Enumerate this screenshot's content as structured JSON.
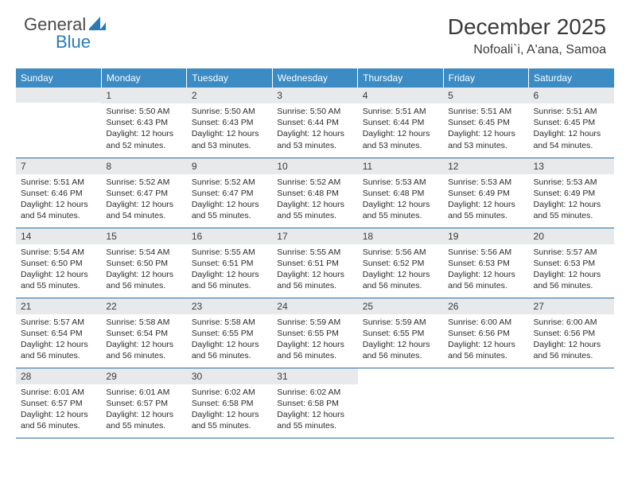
{
  "brand": {
    "part1": "General",
    "part2": "Blue"
  },
  "title": "December 2025",
  "location": "Nofoali`i, A'ana, Samoa",
  "colors": {
    "header_bg": "#3b8bc4",
    "header_text": "#ffffff",
    "daynum_bg": "#e7e9eb",
    "rule": "#2a6fa3",
    "text": "#2b2b2b",
    "brand_gray": "#4a4a4a",
    "brand_blue": "#2a7ab8"
  },
  "weekdays": [
    "Sunday",
    "Monday",
    "Tuesday",
    "Wednesday",
    "Thursday",
    "Friday",
    "Saturday"
  ],
  "weeks": [
    [
      null,
      {
        "n": "1",
        "sr": "5:50 AM",
        "ss": "6:43 PM",
        "dl": "12 hours and 52 minutes."
      },
      {
        "n": "2",
        "sr": "5:50 AM",
        "ss": "6:43 PM",
        "dl": "12 hours and 53 minutes."
      },
      {
        "n": "3",
        "sr": "5:50 AM",
        "ss": "6:44 PM",
        "dl": "12 hours and 53 minutes."
      },
      {
        "n": "4",
        "sr": "5:51 AM",
        "ss": "6:44 PM",
        "dl": "12 hours and 53 minutes."
      },
      {
        "n": "5",
        "sr": "5:51 AM",
        "ss": "6:45 PM",
        "dl": "12 hours and 53 minutes."
      },
      {
        "n": "6",
        "sr": "5:51 AM",
        "ss": "6:45 PM",
        "dl": "12 hours and 54 minutes."
      }
    ],
    [
      {
        "n": "7",
        "sr": "5:51 AM",
        "ss": "6:46 PM",
        "dl": "12 hours and 54 minutes."
      },
      {
        "n": "8",
        "sr": "5:52 AM",
        "ss": "6:47 PM",
        "dl": "12 hours and 54 minutes."
      },
      {
        "n": "9",
        "sr": "5:52 AM",
        "ss": "6:47 PM",
        "dl": "12 hours and 55 minutes."
      },
      {
        "n": "10",
        "sr": "5:52 AM",
        "ss": "6:48 PM",
        "dl": "12 hours and 55 minutes."
      },
      {
        "n": "11",
        "sr": "5:53 AM",
        "ss": "6:48 PM",
        "dl": "12 hours and 55 minutes."
      },
      {
        "n": "12",
        "sr": "5:53 AM",
        "ss": "6:49 PM",
        "dl": "12 hours and 55 minutes."
      },
      {
        "n": "13",
        "sr": "5:53 AM",
        "ss": "6:49 PM",
        "dl": "12 hours and 55 minutes."
      }
    ],
    [
      {
        "n": "14",
        "sr": "5:54 AM",
        "ss": "6:50 PM",
        "dl": "12 hours and 55 minutes."
      },
      {
        "n": "15",
        "sr": "5:54 AM",
        "ss": "6:50 PM",
        "dl": "12 hours and 56 minutes."
      },
      {
        "n": "16",
        "sr": "5:55 AM",
        "ss": "6:51 PM",
        "dl": "12 hours and 56 minutes."
      },
      {
        "n": "17",
        "sr": "5:55 AM",
        "ss": "6:51 PM",
        "dl": "12 hours and 56 minutes."
      },
      {
        "n": "18",
        "sr": "5:56 AM",
        "ss": "6:52 PM",
        "dl": "12 hours and 56 minutes."
      },
      {
        "n": "19",
        "sr": "5:56 AM",
        "ss": "6:53 PM",
        "dl": "12 hours and 56 minutes."
      },
      {
        "n": "20",
        "sr": "5:57 AM",
        "ss": "6:53 PM",
        "dl": "12 hours and 56 minutes."
      }
    ],
    [
      {
        "n": "21",
        "sr": "5:57 AM",
        "ss": "6:54 PM",
        "dl": "12 hours and 56 minutes."
      },
      {
        "n": "22",
        "sr": "5:58 AM",
        "ss": "6:54 PM",
        "dl": "12 hours and 56 minutes."
      },
      {
        "n": "23",
        "sr": "5:58 AM",
        "ss": "6:55 PM",
        "dl": "12 hours and 56 minutes."
      },
      {
        "n": "24",
        "sr": "5:59 AM",
        "ss": "6:55 PM",
        "dl": "12 hours and 56 minutes."
      },
      {
        "n": "25",
        "sr": "5:59 AM",
        "ss": "6:55 PM",
        "dl": "12 hours and 56 minutes."
      },
      {
        "n": "26",
        "sr": "6:00 AM",
        "ss": "6:56 PM",
        "dl": "12 hours and 56 minutes."
      },
      {
        "n": "27",
        "sr": "6:00 AM",
        "ss": "6:56 PM",
        "dl": "12 hours and 56 minutes."
      }
    ],
    [
      {
        "n": "28",
        "sr": "6:01 AM",
        "ss": "6:57 PM",
        "dl": "12 hours and 56 minutes."
      },
      {
        "n": "29",
        "sr": "6:01 AM",
        "ss": "6:57 PM",
        "dl": "12 hours and 55 minutes."
      },
      {
        "n": "30",
        "sr": "6:02 AM",
        "ss": "6:58 PM",
        "dl": "12 hours and 55 minutes."
      },
      {
        "n": "31",
        "sr": "6:02 AM",
        "ss": "6:58 PM",
        "dl": "12 hours and 55 minutes."
      },
      null,
      null,
      null
    ]
  ],
  "labels": {
    "sunrise": "Sunrise:",
    "sunset": "Sunset:",
    "daylight": "Daylight:"
  }
}
